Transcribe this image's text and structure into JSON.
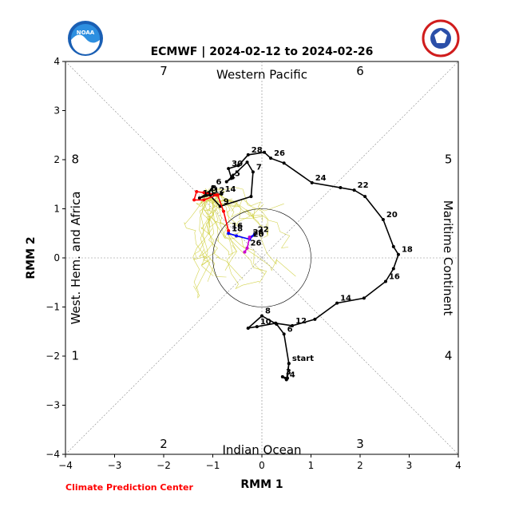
{
  "chart_data": {
    "type": "line",
    "title": "ECMWF | 2024-02-12 to 2024-02-26",
    "xlabel": "RMM 1",
    "ylabel": "RMM 2",
    "xlim": [
      -4,
      4
    ],
    "ylim": [
      -4,
      4
    ],
    "xticks": [
      -4,
      -3,
      -2,
      -1,
      0,
      1,
      2,
      3,
      4
    ],
    "yticks": [
      -4,
      -3,
      -2,
      -1,
      0,
      1,
      2,
      3,
      4
    ],
    "grid": "dashed diagonals and zero lines",
    "unit_circle_radius": 1,
    "region_labels": [
      {
        "text": "Western Pacific",
        "side": "top"
      },
      {
        "text": "Indian Ocean",
        "side": "bottom"
      },
      {
        "text": "West. Hem. and Africa",
        "side": "left"
      },
      {
        "text": "Maritime Continent",
        "side": "right"
      }
    ],
    "phase_labels": [
      {
        "text": "7",
        "x": -2.0,
        "y": 3.8
      },
      {
        "text": "6",
        "x": 2.0,
        "y": 3.8
      },
      {
        "text": "8",
        "x": -3.8,
        "y": 2.0
      },
      {
        "text": "5",
        "x": 3.8,
        "y": 2.0
      },
      {
        "text": "1",
        "x": -3.8,
        "y": -2.0
      },
      {
        "text": "4",
        "x": 3.8,
        "y": -2.0
      },
      {
        "text": "2",
        "x": -2.0,
        "y": -3.8
      },
      {
        "text": "3",
        "x": 2.0,
        "y": -3.8
      }
    ],
    "series": [
      {
        "name": "",
        "color": "#000000",
        "points": [
          {
            "x": 0.55,
            "y": -2.15,
            "label": "start"
          },
          {
            "x": 0.52,
            "y": -2.45,
            "label": ""
          },
          {
            "x": 0.42,
            "y": -2.42,
            "label": "3"
          },
          {
            "x": 0.5,
            "y": -2.48,
            "label": "4"
          },
          {
            "x": 0.55,
            "y": -2.15,
            "label": ""
          },
          {
            "x": 0.45,
            "y": -1.55,
            "label": "6"
          },
          {
            "x": 0.3,
            "y": -1.35,
            "label": ""
          },
          {
            "x": 0.0,
            "y": -1.18,
            "label": "8"
          },
          {
            "x": -0.28,
            "y": -1.43,
            "label": ""
          },
          {
            "x": -0.1,
            "y": -1.4,
            "label": "10"
          },
          {
            "x": 0.28,
            "y": -1.33,
            "label": ""
          },
          {
            "x": 0.62,
            "y": -1.38,
            "label": "12"
          },
          {
            "x": 1.08,
            "y": -1.25,
            "label": ""
          },
          {
            "x": 1.53,
            "y": -0.92,
            "label": "14"
          },
          {
            "x": 2.08,
            "y": -0.82,
            "label": ""
          },
          {
            "x": 2.52,
            "y": -0.48,
            "label": "16"
          },
          {
            "x": 2.68,
            "y": -0.22,
            "label": ""
          },
          {
            "x": 2.78,
            "y": 0.07,
            "label": "18"
          },
          {
            "x": 2.68,
            "y": 0.23,
            "label": ""
          },
          {
            "x": 2.47,
            "y": 0.78,
            "label": "20"
          },
          {
            "x": 2.1,
            "y": 1.25,
            "label": ""
          },
          {
            "x": 1.88,
            "y": 1.38,
            "label": "22"
          },
          {
            "x": 1.6,
            "y": 1.43,
            "label": ""
          },
          {
            "x": 1.02,
            "y": 1.53,
            "label": "24"
          },
          {
            "x": 0.45,
            "y": 1.93,
            "label": ""
          },
          {
            "x": 0.18,
            "y": 2.03,
            "label": "26"
          },
          {
            "x": 0.05,
            "y": 2.15,
            "label": ""
          },
          {
            "x": -0.28,
            "y": 2.1,
            "label": "28"
          },
          {
            "x": -0.48,
            "y": 1.88,
            "label": ""
          },
          {
            "x": -0.68,
            "y": 1.82,
            "label": "30"
          },
          {
            "x": -0.62,
            "y": 1.62,
            "label": "5"
          },
          {
            "x": -0.72,
            "y": 1.55,
            "label": "4"
          },
          {
            "x": -0.3,
            "y": 1.95,
            "label": ""
          },
          {
            "x": -0.18,
            "y": 1.75,
            "label": "7"
          },
          {
            "x": -0.22,
            "y": 1.25,
            "label": ""
          },
          {
            "x": -0.85,
            "y": 1.05,
            "label": "9"
          },
          {
            "x": -1.1,
            "y": 1.32,
            "label": "8"
          },
          {
            "x": -1.0,
            "y": 1.45,
            "label": "6"
          },
          {
            "x": -1.08,
            "y": 1.33,
            "label": ""
          },
          {
            "x": -1.27,
            "y": 1.22,
            "label": "10"
          },
          {
            "x": -1.05,
            "y": 1.28,
            "label": "12"
          },
          {
            "x": -0.98,
            "y": 1.3,
            "label": ""
          },
          {
            "x": -0.82,
            "y": 1.3,
            "label": "14"
          }
        ]
      },
      {
        "name": "",
        "color": "#ff0000",
        "points": [
          {
            "x": -0.92,
            "y": 1.28,
            "label": ""
          },
          {
            "x": -1.18,
            "y": 1.18,
            "label": ""
          },
          {
            "x": -1.38,
            "y": 1.18,
            "label": ""
          },
          {
            "x": -1.33,
            "y": 1.35,
            "label": ""
          },
          {
            "x": -1.18,
            "y": 1.33,
            "label": ""
          },
          {
            "x": -0.9,
            "y": 1.28,
            "label": ""
          },
          {
            "x": -0.78,
            "y": 0.95,
            "label": ""
          },
          {
            "x": -0.68,
            "y": 0.55,
            "label": "16"
          }
        ]
      },
      {
        "name": "",
        "color": "#0000ff",
        "points": [
          {
            "x": -0.68,
            "y": 0.5,
            "label": "18"
          },
          {
            "x": -0.52,
            "y": 0.45,
            "label": ""
          },
          {
            "x": -0.25,
            "y": 0.38,
            "label": "20"
          },
          {
            "x": -0.15,
            "y": 0.48,
            "label": "22"
          },
          {
            "x": -0.25,
            "y": 0.42,
            "label": "24"
          }
        ]
      },
      {
        "name": "",
        "color": "#cc00cc",
        "points": [
          {
            "x": -0.25,
            "y": 0.42,
            "label": ""
          },
          {
            "x": -0.3,
            "y": 0.2,
            "label": "26"
          },
          {
            "x": -0.35,
            "y": 0.12,
            "label": ""
          }
        ]
      }
    ],
    "ensemble_color": "#cccc33",
    "ensemble_members": 24
  },
  "logos": {
    "left": "noaa-logo",
    "right": "national-weather-service-logo",
    "left_text": "NOAA",
    "right_text": "NATIONAL WEATHER SERVICE"
  },
  "credit": "Climate Prediction Center"
}
